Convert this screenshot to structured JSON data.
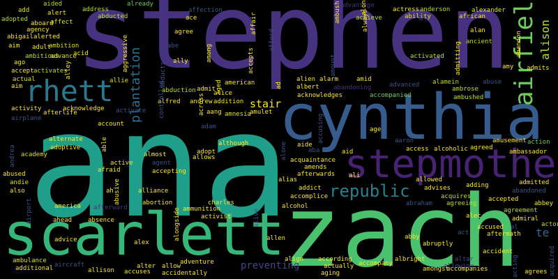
{
  "words": [
    {
      "text": "stephen",
      "color": "#46327e"
    },
    {
      "text": "ana",
      "color": "#1f9e89"
    },
    {
      "text": "zach",
      "color": "#4ac16d"
    },
    {
      "text": "cynthia",
      "color": "#365c8d"
    },
    {
      "text": "scarlett",
      "color": "#35b779"
    },
    {
      "text": "stepmother",
      "color": "#482374"
    },
    {
      "text": "rhett",
      "color": "#2a788e"
    },
    {
      "text": "airfield",
      "color": "#6ccd5a"
    },
    {
      "text": "republic",
      "color": "#26828e"
    },
    {
      "text": "plantation",
      "color": "#2d708e"
    },
    {
      "text": "alison",
      "color": "#bddf26"
    },
    {
      "text": "preventing",
      "color": "#3f4788"
    },
    {
      "text": "stair",
      "color": "#fde725"
    },
    {
      "text": "te",
      "color": "#31688e"
    },
    {
      "text": "aided",
      "color": "#b5de2b"
    },
    {
      "text": "address",
      "color": "#bddf26"
    },
    {
      "text": "already",
      "color": "#6ece58"
    },
    {
      "text": "add",
      "color": "#dde318"
    },
    {
      "text": "alert",
      "color": "#fde725"
    },
    {
      "text": "abducted",
      "color": "#bddf26"
    },
    {
      "text": "affection",
      "color": "#3b528b"
    },
    {
      "text": "adopted",
      "color": "#b5de2b"
    },
    {
      "text": "affect",
      "color": "#dde318"
    },
    {
      "text": "aboard",
      "color": "#fde725"
    },
    {
      "text": "ace",
      "color": "#fde725"
    },
    {
      "text": "advantage",
      "color": "#46327e"
    },
    {
      "text": "actress",
      "color": "#fde725"
    },
    {
      "text": "anderson",
      "color": "#bddf26"
    },
    {
      "text": "alexander",
      "color": "#dde318"
    },
    {
      "text": "achieve",
      "color": "#bddf26"
    },
    {
      "text": "ability",
      "color": "#dde318"
    },
    {
      "text": "african",
      "color": "#fde725"
    },
    {
      "text": "agency",
      "color": "#fde725"
    },
    {
      "text": "abigail",
      "color": "#fde725"
    },
    {
      "text": "alerted",
      "color": "#fde725"
    },
    {
      "text": "agree",
      "color": "#fde725"
    },
    {
      "text": "aim",
      "color": "#fde725"
    },
    {
      "text": "ambition",
      "color": "#dde318"
    },
    {
      "text": "adult",
      "color": "#fde725"
    },
    {
      "text": "abe",
      "color": "#3b528b"
    },
    {
      "text": "ambitious",
      "color": "#bddf26"
    },
    {
      "text": "advance",
      "color": "#dde318"
    },
    {
      "text": "acid",
      "color": "#fde725"
    },
    {
      "text": "ally",
      "color": "#fde725"
    },
    {
      "text": "activated",
      "color": "#c2df23"
    },
    {
      "text": "alan",
      "color": "#fde725"
    },
    {
      "text": "ancient",
      "color": "#bddf26"
    },
    {
      "text": "ago",
      "color": "#fde725"
    },
    {
      "text": "accept",
      "color": "#fde725"
    },
    {
      "text": "activates",
      "color": "#bddf26"
    },
    {
      "text": "amy",
      "color": "#fde725"
    },
    {
      "text": "admits",
      "color": "#fde725"
    },
    {
      "text": "actual",
      "color": "#dde318"
    },
    {
      "text": "aim",
      "color": "#fde725"
    },
    {
      "text": "allie",
      "color": "#dde318"
    },
    {
      "text": "advanced",
      "color": "#3b528b"
    },
    {
      "text": "alamein",
      "color": "#bddf26"
    },
    {
      "text": "abuse",
      "color": "#3b528b"
    },
    {
      "text": "american",
      "color": "#fde725"
    },
    {
      "text": "albert",
      "color": "#fde725"
    },
    {
      "text": "abandoning",
      "color": "#46327e"
    },
    {
      "text": "ambrose",
      "color": "#bddf26"
    },
    {
      "text": "abduction",
      "color": "#bddf26"
    },
    {
      "text": "admit",
      "color": "#fde725"
    },
    {
      "text": "alice",
      "color": "#fde725"
    },
    {
      "text": "alien",
      "color": "#fde725"
    },
    {
      "text": "alarm",
      "color": "#fde725"
    },
    {
      "text": "amid",
      "color": "#fde725"
    },
    {
      "text": "acknowledges",
      "color": "#fde725"
    },
    {
      "text": "accompanied",
      "color": "#6ece58"
    },
    {
      "text": "ambushed",
      "color": "#bddf26"
    },
    {
      "text": "activity",
      "color": "#fde725"
    },
    {
      "text": "acknowledge",
      "color": "#fde725"
    },
    {
      "text": "alfred",
      "color": "#fde725"
    },
    {
      "text": "andrew",
      "color": "#fde725"
    },
    {
      "text": "addition",
      "color": "#fde725"
    },
    {
      "text": "afterlife",
      "color": "#fde725"
    },
    {
      "text": "activate",
      "color": "#3b528b"
    },
    {
      "text": "aang",
      "color": "#fde725"
    },
    {
      "text": "amnesia",
      "color": "#dde318"
    },
    {
      "text": "amulet",
      "color": "#fde725"
    },
    {
      "text": "airplane",
      "color": "#3b528b"
    },
    {
      "text": "account",
      "color": "#fde725"
    },
    {
      "text": "adam",
      "color": "#3b528b"
    },
    {
      "text": "age",
      "color": "#fde725"
    },
    {
      "text": "action",
      "color": "#6ece58"
    },
    {
      "text": "aaron",
      "color": "#3b528b"
    },
    {
      "text": "amusement",
      "color": "#fde725"
    },
    {
      "text": "alternate",
      "color": "#fde725"
    },
    {
      "text": "although",
      "color": "#fde725"
    },
    {
      "text": "aide",
      "color": "#fde725"
    },
    {
      "text": "access",
      "color": "#fde725"
    },
    {
      "text": "alcoholic",
      "color": "#fde725"
    },
    {
      "text": "agreed",
      "color": "#fde725"
    },
    {
      "text": "academy",
      "color": "#dde318"
    },
    {
      "text": "adoptive",
      "color": "#fde725"
    },
    {
      "text": "aba",
      "color": "#3b528b"
    },
    {
      "text": "aid",
      "color": "#fde725"
    },
    {
      "text": "ambassador",
      "color": "#fde725"
    },
    {
      "text": "active",
      "color": "#fde725"
    },
    {
      "text": "almost",
      "color": "#fde725"
    },
    {
      "text": "adopt",
      "color": "#fde725"
    },
    {
      "text": "allows",
      "color": "#fde725"
    },
    {
      "text": "acquaintance",
      "color": "#fde725"
    },
    {
      "text": "amends",
      "color": "#fde725"
    },
    {
      "text": "abused",
      "color": "#fde725"
    },
    {
      "text": "afraid",
      "color": "#fde725"
    },
    {
      "text": "agent",
      "color": "#3b528b"
    },
    {
      "text": "accepting",
      "color": "#fde725"
    },
    {
      "text": "afterwards",
      "color": "#fde725"
    },
    {
      "text": "alias",
      "color": "#fde725"
    },
    {
      "text": "ali",
      "color": "#fde725"
    },
    {
      "text": "allowed",
      "color": "#fde725"
    },
    {
      "text": "andie",
      "color": "#dde318"
    },
    {
      "text": "addict",
      "color": "#fde725"
    },
    {
      "text": "advises",
      "color": "#fde725"
    },
    {
      "text": "adding",
      "color": "#fde725"
    },
    {
      "text": "admitted",
      "color": "#fde725"
    },
    {
      "text": "also",
      "color": "#fde725"
    },
    {
      "text": "ah",
      "color": "#fde725"
    },
    {
      "text": "alliance",
      "color": "#fde725"
    },
    {
      "text": "accomplice",
      "color": "#fde725"
    },
    {
      "text": "acquires",
      "color": "#bddf26"
    },
    {
      "text": "abandoned",
      "color": "#3b528b"
    },
    {
      "text": "accepted",
      "color": "#fde725"
    },
    {
      "text": "abbey",
      "color": "#fde725"
    },
    {
      "text": "america",
      "color": "#fde725"
    },
    {
      "text": "abortion",
      "color": "#fde725"
    },
    {
      "text": "charles",
      "color": "#fde725"
    },
    {
      "text": "abraham",
      "color": "#3b528b"
    },
    {
      "text": "agreeing",
      "color": "#bddf26"
    },
    {
      "text": "afterward",
      "color": "#46327e"
    },
    {
      "text": "ammunition",
      "color": "#fde725"
    },
    {
      "text": "alcohol",
      "color": "#fde725"
    },
    {
      "text": "agreement",
      "color": "#bddf26"
    },
    {
      "text": "alec",
      "color": "#fde725"
    },
    {
      "text": "admiral",
      "color": "#fde725"
    },
    {
      "text": "actor",
      "color": "#bddf26"
    },
    {
      "text": "activist",
      "color": "#fde725"
    },
    {
      "text": "accused",
      "color": "#fde725"
    },
    {
      "text": "ahead",
      "color": "#fde725"
    },
    {
      "text": "absence",
      "color": "#fde725"
    },
    {
      "text": "al",
      "color": "#3b528b"
    },
    {
      "text": "act",
      "color": "#3b528b"
    },
    {
      "text": "aftermath",
      "color": "#fde725"
    },
    {
      "text": "advice",
      "color": "#fde725"
    },
    {
      "text": "alex",
      "color": "#fde725"
    },
    {
      "text": "allen",
      "color": "#fde725"
    },
    {
      "text": "abby",
      "color": "#fde725"
    },
    {
      "text": "abruptly",
      "color": "#fde725"
    },
    {
      "text": "ambulance",
      "color": "#dde318"
    },
    {
      "text": "adventure",
      "color": "#fde725"
    },
    {
      "text": "align",
      "color": "#fde725"
    },
    {
      "text": "according",
      "color": "#fde725"
    },
    {
      "text": "altar",
      "color": "#3b528b"
    },
    {
      "text": "allowing",
      "color": "#3b528b"
    },
    {
      "text": "accident",
      "color": "#fde725"
    },
    {
      "text": "additional",
      "color": "#fde725"
    },
    {
      "text": "aircraft",
      "color": "#3b528b"
    },
    {
      "text": "alter",
      "color": "#fde725"
    },
    {
      "text": "allow",
      "color": "#fde725"
    },
    {
      "text": "actually",
      "color": "#fde725"
    },
    {
      "text": "accompany",
      "color": "#fde725"
    },
    {
      "text": "albright",
      "color": "#fde725"
    },
    {
      "text": "allison",
      "color": "#fde725"
    },
    {
      "text": "accuses",
      "color": "#fde725"
    },
    {
      "text": "accidentally",
      "color": "#fde725"
    },
    {
      "text": "aging",
      "color": "#fde725"
    },
    {
      "text": "amongst",
      "color": "#fde725"
    },
    {
      "text": "accompanies",
      "color": "#fde725"
    },
    {
      "text": "agrees",
      "color": "#fde725"
    },
    {
      "text": "ambush",
      "color": "#fde725"
    },
    {
      "text": "along",
      "color": "#fde725"
    },
    {
      "text": "always",
      "color": "#fde725"
    },
    {
      "text": "air",
      "color": "#3b528b"
    },
    {
      "text": "abandon",
      "color": "#fde725"
    },
    {
      "text": "admitting",
      "color": "#fde725"
    },
    {
      "text": "affair",
      "color": "#fde725"
    },
    {
      "text": "accepts",
      "color": "#fde725"
    },
    {
      "text": "afford",
      "color": "#3b528b"
    },
    {
      "text": "amount",
      "color": "#3b528b"
    },
    {
      "text": "aggressive",
      "color": "#fde725"
    },
    {
      "text": "among",
      "color": "#fde725"
    },
    {
      "text": "alley",
      "color": "#fde725"
    },
    {
      "text": "aged",
      "color": "#fde725"
    },
    {
      "text": "abducts",
      "color": "#3b528b"
    },
    {
      "text": "ad",
      "color": "#fde725"
    },
    {
      "text": "controlled",
      "color": "#3b528b"
    },
    {
      "text": "across",
      "color": "#fde725"
    },
    {
      "text": "accusing",
      "color": "#3b528b"
    },
    {
      "text": "andrea",
      "color": "#3b528b"
    },
    {
      "text": "able",
      "color": "#fde725"
    },
    {
      "text": "alone",
      "color": "#3b528b"
    },
    {
      "text": "abusive",
      "color": "#fde725"
    },
    {
      "text": "airport",
      "color": "#3b528b"
    },
    {
      "text": "alongside",
      "color": "#fde725"
    },
    {
      "text": "alive",
      "color": "#3b528b"
    },
    {
      "text": "acting",
      "color": "#3b528b"
    },
    {
      "text": "acquired",
      "color": "#3b528b"
    }
  ]
}
